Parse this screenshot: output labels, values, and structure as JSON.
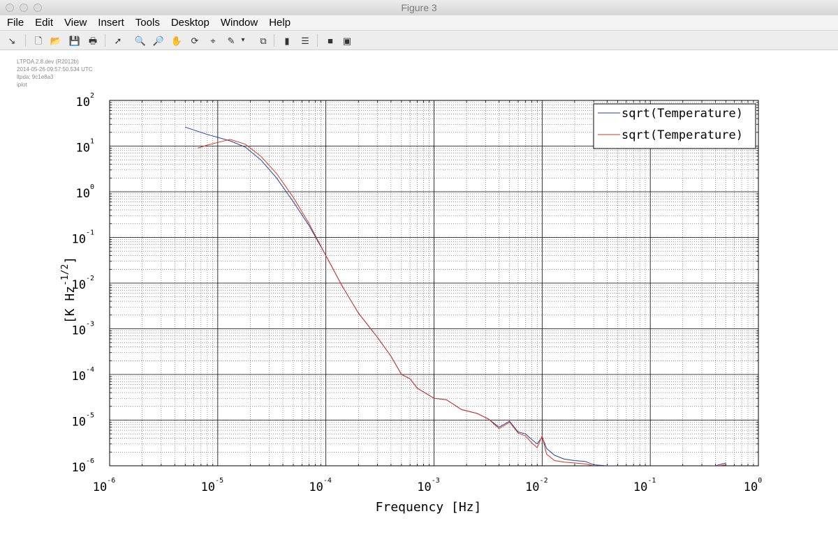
{
  "window": {
    "title": "Figure 3"
  },
  "menu": [
    "File",
    "Edit",
    "View",
    "Insert",
    "Tools",
    "Desktop",
    "Window",
    "Help"
  ],
  "toolbar": {
    "buttons": [
      {
        "name": "arrow-dock-icon",
        "glyph": "↘"
      },
      {
        "name": "new-figure-icon",
        "glyph": "🗋"
      },
      {
        "name": "open-file-icon",
        "glyph": "📂"
      },
      {
        "name": "save-icon",
        "glyph": "💾"
      },
      {
        "name": "print-icon",
        "glyph": "🖶"
      },
      {
        "name": "edit-plot-pointer-icon",
        "glyph": "➚"
      },
      {
        "name": "zoom-in-icon",
        "glyph": "🔍"
      },
      {
        "name": "zoom-out-icon",
        "glyph": "🔎"
      },
      {
        "name": "pan-hand-icon",
        "glyph": "✋"
      },
      {
        "name": "rotate-3d-icon",
        "glyph": "⟳"
      },
      {
        "name": "data-cursor-icon",
        "glyph": "⌖"
      },
      {
        "name": "brush-icon",
        "glyph": "✎"
      },
      {
        "name": "brush-dropdown-icon",
        "glyph": "▾"
      },
      {
        "name": "link-plot-icon",
        "glyph": "⧉"
      },
      {
        "name": "insert-colorbar-icon",
        "glyph": "▮"
      },
      {
        "name": "insert-legend-icon",
        "glyph": "☰"
      },
      {
        "name": "hide-plot-tools-icon",
        "glyph": "■"
      },
      {
        "name": "show-plot-tools-icon",
        "glyph": "▣"
      }
    ]
  },
  "info_lines": [
    "LTPDA 2.8.dev (R2012b)",
    "2014-05-26 09:57:50.534 UTC",
    "ltpda: 9c1e8a3",
    "iplot"
  ],
  "colors": {
    "series1": "#1f3fa8",
    "series2": "#e0321e",
    "grid_major": "#000000",
    "grid_minor": "#555555"
  },
  "chart_data": {
    "type": "line",
    "xscale": "log",
    "yscale": "log",
    "xlim": [
      1e-06,
      1
    ],
    "ylim": [
      1e-06,
      100
    ],
    "xlabel": "Frequency   [Hz]",
    "ylabel": "[K Hz^{-1/2}]",
    "xticks": [
      {
        "base": "10",
        "exp": "-6"
      },
      {
        "base": "10",
        "exp": "-5"
      },
      {
        "base": "10",
        "exp": "-4"
      },
      {
        "base": "10",
        "exp": "-3"
      },
      {
        "base": "10",
        "exp": "-2"
      },
      {
        "base": "10",
        "exp": "-1"
      },
      {
        "base": "10",
        "exp": "0"
      }
    ],
    "yticks": [
      {
        "base": "10",
        "exp": "-6"
      },
      {
        "base": "10",
        "exp": "-5"
      },
      {
        "base": "10",
        "exp": "-4"
      },
      {
        "base": "10",
        "exp": "-3"
      },
      {
        "base": "10",
        "exp": "-2"
      },
      {
        "base": "10",
        "exp": "-1"
      },
      {
        "base": "10",
        "exp": "0"
      },
      {
        "base": "10",
        "exp": "1"
      },
      {
        "base": "10",
        "exp": "2"
      }
    ],
    "grid": true,
    "minor_grid": true,
    "legend_position": "top-right",
    "series": [
      {
        "name": "sqrt(Temperature)",
        "color": "#1f3fa8",
        "x": [
          5e-06,
          8e-06,
          1.3e-05,
          1.8e-05,
          2.5e-05,
          3.5e-05,
          5e-05,
          7e-05,
          0.0001,
          0.00014,
          0.0002,
          0.0003,
          0.0004,
          0.0005,
          0.0006,
          0.0007,
          0.001,
          0.0013,
          0.0018,
          0.0025,
          0.0032,
          0.004,
          0.005,
          0.006,
          0.007,
          0.008,
          0.009,
          0.01,
          0.011,
          0.013,
          0.016,
          0.02,
          0.025,
          0.03,
          0.04,
          0.06,
          0.1,
          0.2,
          0.3,
          0.4,
          0.5
        ],
        "y": [
          26,
          18,
          13,
          9.5,
          5.0,
          2.0,
          0.6,
          0.18,
          0.04,
          0.009,
          0.0022,
          0.00065,
          0.00025,
          0.0001,
          8e-05,
          5e-05,
          3e-05,
          2.8e-05,
          1.7e-05,
          1.4e-05,
          1.05e-05,
          7e-06,
          9.5e-06,
          5.5e-06,
          5e-06,
          3.8e-06,
          3e-06,
          4.3e-06,
          2.4e-06,
          1.7e-06,
          1.4e-06,
          1.3e-06,
          1.25e-06,
          1.05e-06,
          1e-06,
          9.8e-07,
          9.5e-07,
          9.7e-07,
          9.6e-07,
          1e-06,
          1.15e-06
        ]
      },
      {
        "name": "sqrt(Temperature)",
        "color": "#e0321e",
        "x": [
          6.5e-06,
          8e-06,
          1e-05,
          1.3e-05,
          1.8e-05,
          2.5e-05,
          3.5e-05,
          5e-05,
          7e-05,
          0.0001,
          0.00014,
          0.0002,
          0.0003,
          0.0004,
          0.0005,
          0.0006,
          0.0007,
          0.001,
          0.0013,
          0.0018,
          0.0025,
          0.0032,
          0.004,
          0.005,
          0.006,
          0.007,
          0.008,
          0.009,
          0.01,
          0.011,
          0.013,
          0.016,
          0.02,
          0.025,
          0.03,
          0.04,
          0.06,
          0.1,
          0.2,
          0.3,
          0.4,
          0.5
        ],
        "y": [
          9,
          10.5,
          12,
          14,
          11,
          6.0,
          2.5,
          0.75,
          0.2,
          0.04,
          0.009,
          0.0022,
          0.00065,
          0.00025,
          0.0001,
          8e-05,
          5e-05,
          3e-05,
          2.8e-05,
          1.7e-05,
          1.4e-05,
          1.05e-05,
          6.5e-06,
          9e-06,
          5.2e-06,
          4.5e-06,
          3.2e-06,
          2.5e-06,
          4.5e-06,
          1.8e-06,
          1.3e-06,
          1.2e-06,
          1.15e-06,
          1.1e-06,
          1e-06,
          9.8e-07,
          9.5e-07,
          9.4e-07,
          9.5e-07,
          9.6e-07,
          9.8e-07,
          1.05e-06
        ]
      }
    ]
  }
}
